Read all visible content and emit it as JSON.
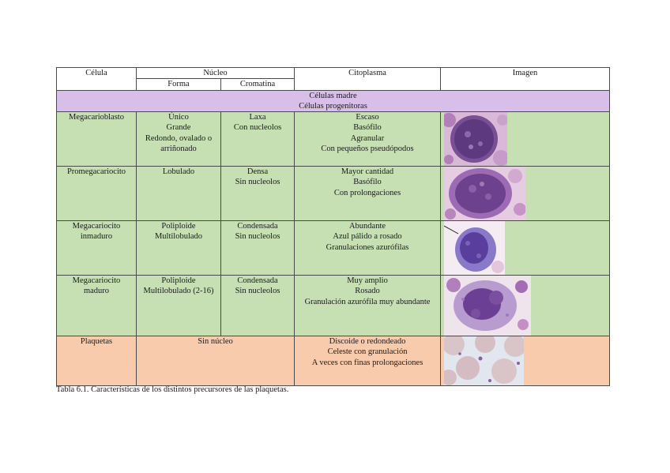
{
  "table": {
    "headers": {
      "cell": "Célula",
      "nucleus": "Núcleo",
      "shape": "Forma",
      "chromatin": "Cromatina",
      "cytoplasm": "Citoplasma",
      "image": "Imagen"
    },
    "section_lines": [
      "Células madre",
      "Células progenitoras"
    ],
    "rows": [
      {
        "cell": [
          "Megacarioblasto"
        ],
        "shape": [
          "Único",
          "Grande",
          "Redondo, ovalado o",
          "arriñonado"
        ],
        "chromatin": [
          "Laxa",
          "Con nucleolos"
        ],
        "cytoplasm": [
          "Escaso",
          "Basófilo",
          "Agranular",
          "Con pequeños pseudópodos"
        ],
        "image_icon": "megakaryoblast-micrograph"
      },
      {
        "cell": [
          "Promegacariocito"
        ],
        "shape": [
          "Lobulado"
        ],
        "chromatin": [
          "Densa",
          "Sin nucleolos"
        ],
        "cytoplasm": [
          "Mayor cantidad",
          "Basófilo",
          "Con prolongaciones"
        ],
        "image_icon": "promegakaryocyte-micrograph"
      },
      {
        "cell": [
          "Megacariocito",
          "inmaduro"
        ],
        "shape": [
          "Poliploide",
          "Multilobulado"
        ],
        "chromatin": [
          "Condensada",
          "Sin nucleolos"
        ],
        "cytoplasm": [
          "Abundante",
          "Azul pálido a rosado",
          "Granulaciones azurófilas"
        ],
        "image_icon": "immature-megakaryocyte-micrograph"
      },
      {
        "cell": [
          "Megacariocito",
          "maduro"
        ],
        "shape": [
          "Poliploide",
          "Multilobulado (2-16)"
        ],
        "chromatin": [
          "Condensada",
          "Sin nucleolos"
        ],
        "cytoplasm": [
          "Muy amplio",
          "Rosado",
          "Granulación azurófila muy abundante"
        ],
        "image_icon": "mature-megakaryocyte-micrograph"
      }
    ],
    "platelets": {
      "cell": [
        "Plaquetas"
      ],
      "nucleus": [
        "Sin núcleo"
      ],
      "cytoplasm": [
        "Discoide o redondeado",
        "Celeste con granulación",
        "A veces con finas prolongaciones"
      ],
      "image_icon": "platelets-micrograph"
    },
    "colors": {
      "section": "#d8bfe9",
      "cells": "#c6e0b4",
      "platelets": "#f8cbad"
    }
  },
  "caption": "Tabla 6.1. Características de los distintos precursores de las plaquetas."
}
